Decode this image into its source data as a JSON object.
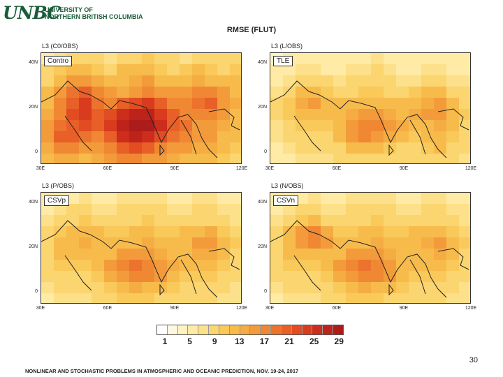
{
  "logo": {
    "mark": "UNBC",
    "line1": "UNIVERSITY OF",
    "line2": "NORTHERN BRITISH COLUMBIA"
  },
  "title": "RMSE (FLUT)",
  "page_number": "30",
  "footer": "NONLINEAR AND STOCHASTIC PROBLEMS IN ATMOSPHERIC AND OCEANIC PREDICTION, NOV. 19-24, 2017",
  "colors": {
    "scale": [
      "#ffffff",
      "#fff8e0",
      "#fff2c4",
      "#ffeaa6",
      "#fde08a",
      "#fbd56f",
      "#f9c95a",
      "#f7bb4c",
      "#f5ac42",
      "#f39b3a",
      "#f08833",
      "#ec732d",
      "#e85f27",
      "#e24c22",
      "#d93b1e",
      "#cc2d1c",
      "#bd231b",
      "#ab1c1a"
    ]
  },
  "chart_data": [
    {
      "type": "heatmap",
      "panel_title": "L3 (C0/OBS)",
      "label": "Contro",
      "x_ticks": [
        "30E",
        "60E",
        "90E",
        "120E"
      ],
      "y_ticks": [
        "40N",
        "20N",
        "0"
      ],
      "xlim": [
        30,
        120
      ],
      "ylim": [
        -5,
        45
      ],
      "values": [
        [
          7,
          8,
          9,
          10,
          9,
          8,
          9,
          10,
          11,
          10,
          9,
          8,
          9,
          10,
          9,
          10
        ],
        [
          9,
          11,
          12,
          12,
          11,
          10,
          12,
          13,
          12,
          11,
          10,
          11,
          12,
          11,
          10,
          11
        ],
        [
          10,
          13,
          15,
          16,
          14,
          12,
          13,
          14,
          15,
          13,
          12,
          13,
          14,
          13,
          12,
          12
        ],
        [
          12,
          16,
          19,
          21,
          17,
          15,
          14,
          16,
          17,
          16,
          15,
          16,
          17,
          18,
          15,
          13
        ],
        [
          13,
          17,
          21,
          23,
          19,
          18,
          20,
          22,
          23,
          21,
          18,
          17,
          19,
          21,
          16,
          14
        ],
        [
          14,
          18,
          22,
          24,
          21,
          22,
          25,
          27,
          26,
          24,
          20,
          18,
          17,
          18,
          15,
          13
        ],
        [
          15,
          19,
          21,
          22,
          20,
          23,
          27,
          29,
          28,
          25,
          21,
          19,
          16,
          16,
          14,
          12
        ],
        [
          16,
          20,
          20,
          19,
          18,
          21,
          25,
          27,
          25,
          22,
          19,
          17,
          15,
          15,
          13,
          12
        ],
        [
          14,
          17,
          17,
          16,
          16,
          18,
          21,
          22,
          20,
          18,
          16,
          15,
          14,
          14,
          12,
          11
        ],
        [
          12,
          14,
          14,
          13,
          14,
          15,
          17,
          17,
          16,
          15,
          14,
          13,
          12,
          12,
          11,
          10
        ]
      ]
    },
    {
      "type": "heatmap",
      "panel_title": "L3 (L/OBS)",
      "label": "TLE",
      "x_ticks": [
        "30E",
        "60E",
        "90E",
        "120E"
      ],
      "y_ticks": [
        "40N",
        "20N",
        "0"
      ],
      "xlim": [
        30,
        120
      ],
      "ylim": [
        -5,
        45
      ],
      "values": [
        [
          5,
          6,
          6,
          7,
          6,
          6,
          7,
          7,
          8,
          7,
          6,
          6,
          7,
          7,
          6,
          6
        ],
        [
          6,
          7,
          8,
          8,
          7,
          7,
          8,
          8,
          9,
          8,
          7,
          7,
          8,
          8,
          7,
          7
        ],
        [
          7,
          8,
          9,
          10,
          9,
          8,
          9,
          9,
          10,
          9,
          8,
          8,
          9,
          9,
          8,
          8
        ],
        [
          8,
          10,
          12,
          13,
          11,
          10,
          10,
          11,
          11,
          10,
          10,
          11,
          12,
          12,
          10,
          9
        ],
        [
          9,
          11,
          14,
          15,
          13,
          12,
          12,
          13,
          13,
          12,
          12,
          13,
          14,
          15,
          12,
          10
        ],
        [
          9,
          11,
          13,
          13,
          12,
          12,
          14,
          15,
          15,
          14,
          13,
          14,
          15,
          16,
          13,
          11
        ],
        [
          8,
          10,
          11,
          11,
          11,
          13,
          16,
          18,
          18,
          16,
          14,
          13,
          13,
          14,
          12,
          10
        ],
        [
          8,
          9,
          10,
          10,
          10,
          12,
          15,
          17,
          16,
          14,
          12,
          11,
          12,
          13,
          11,
          9
        ],
        [
          7,
          8,
          9,
          9,
          9,
          10,
          12,
          13,
          12,
          11,
          10,
          10,
          11,
          12,
          10,
          9
        ],
        [
          7,
          7,
          8,
          8,
          8,
          9,
          10,
          10,
          10,
          9,
          9,
          9,
          10,
          10,
          9,
          8
        ]
      ]
    },
    {
      "type": "heatmap",
      "panel_title": "L3 (P/OBS)",
      "label": "CSVp",
      "x_ticks": [
        "30E",
        "60E",
        "90E",
        "120E"
      ],
      "y_ticks": [
        "40N",
        "20N",
        "0"
      ],
      "xlim": [
        30,
        120
      ],
      "ylim": [
        -5,
        45
      ],
      "values": [
        [
          6,
          7,
          7,
          8,
          7,
          7,
          8,
          8,
          8,
          8,
          7,
          7,
          8,
          8,
          7,
          7
        ],
        [
          7,
          8,
          9,
          9,
          8,
          8,
          9,
          9,
          10,
          9,
          8,
          8,
          9,
          9,
          8,
          8
        ],
        [
          8,
          9,
          10,
          11,
          10,
          9,
          10,
          10,
          11,
          10,
          9,
          9,
          10,
          10,
          9,
          8
        ],
        [
          9,
          11,
          12,
          13,
          12,
          11,
          11,
          12,
          12,
          11,
          11,
          12,
          13,
          14,
          11,
          10
        ],
        [
          10,
          12,
          13,
          14,
          13,
          12,
          13,
          13,
          14,
          13,
          12,
          13,
          15,
          16,
          13,
          11
        ],
        [
          10,
          12,
          12,
          12,
          12,
          13,
          15,
          16,
          16,
          14,
          13,
          13,
          14,
          14,
          12,
          10
        ],
        [
          9,
          11,
          11,
          11,
          12,
          15,
          17,
          19,
          18,
          16,
          14,
          12,
          12,
          12,
          11,
          9
        ],
        [
          9,
          10,
          10,
          10,
          11,
          14,
          16,
          18,
          17,
          15,
          12,
          11,
          11,
          11,
          10,
          9
        ],
        [
          8,
          9,
          9,
          9,
          10,
          11,
          13,
          14,
          13,
          12,
          11,
          10,
          10,
          10,
          9,
          8
        ],
        [
          7,
          8,
          8,
          8,
          9,
          10,
          11,
          11,
          11,
          10,
          9,
          9,
          9,
          9,
          8,
          8
        ]
      ]
    },
    {
      "type": "heatmap",
      "panel_title": "L3 (N/OBS)",
      "label": "CSVn",
      "x_ticks": [
        "30E",
        "60E",
        "90E",
        "120E"
      ],
      "y_ticks": [
        "40N",
        "20N",
        "0"
      ],
      "xlim": [
        30,
        120
      ],
      "ylim": [
        -5,
        45
      ],
      "values": [
        [
          6,
          7,
          7,
          8,
          7,
          7,
          8,
          8,
          8,
          8,
          7,
          7,
          8,
          8,
          7,
          7
        ],
        [
          7,
          8,
          9,
          9,
          8,
          8,
          9,
          9,
          10,
          9,
          8,
          8,
          9,
          9,
          8,
          8
        ],
        [
          8,
          10,
          11,
          12,
          10,
          9,
          10,
          10,
          11,
          10,
          9,
          9,
          10,
          10,
          9,
          8
        ],
        [
          9,
          12,
          15,
          17,
          14,
          11,
          11,
          12,
          12,
          11,
          11,
          12,
          13,
          13,
          11,
          10
        ],
        [
          10,
          13,
          16,
          18,
          15,
          12,
          13,
          13,
          14,
          13,
          12,
          13,
          14,
          15,
          12,
          11
        ],
        [
          10,
          12,
          13,
          13,
          12,
          13,
          15,
          16,
          16,
          14,
          13,
          13,
          13,
          14,
          12,
          10
        ],
        [
          9,
          11,
          11,
          11,
          12,
          15,
          17,
          19,
          18,
          16,
          13,
          12,
          12,
          12,
          11,
          9
        ],
        [
          9,
          10,
          10,
          10,
          11,
          14,
          16,
          18,
          17,
          15,
          12,
          11,
          11,
          11,
          10,
          9
        ],
        [
          8,
          9,
          9,
          9,
          10,
          11,
          13,
          14,
          13,
          12,
          11,
          10,
          10,
          10,
          9,
          8
        ],
        [
          7,
          8,
          8,
          8,
          9,
          10,
          11,
          11,
          11,
          10,
          9,
          9,
          9,
          9,
          8,
          8
        ]
      ]
    }
  ],
  "colorbar": {
    "min": 1,
    "max": 29,
    "labels": [
      "1",
      "5",
      "9",
      "13",
      "17",
      "21",
      "25",
      "29"
    ]
  }
}
